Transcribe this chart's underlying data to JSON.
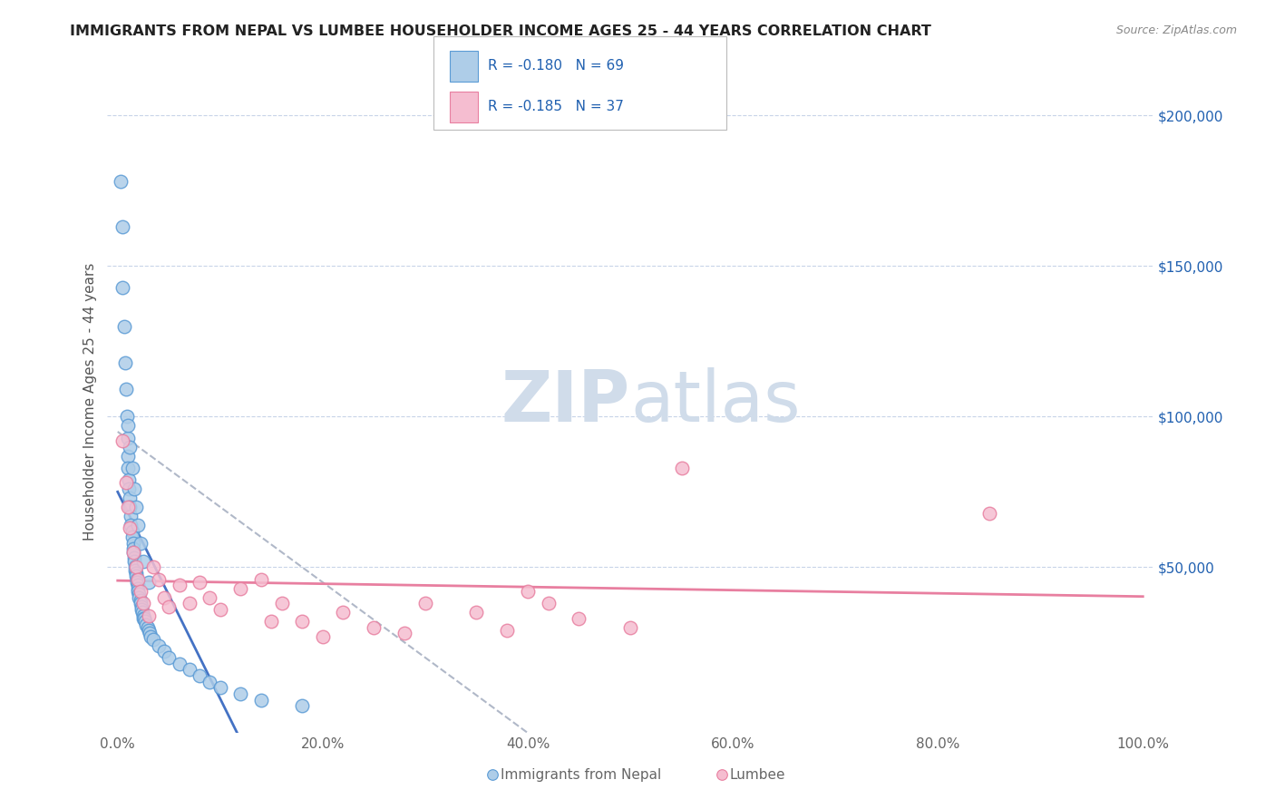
{
  "title": "IMMIGRANTS FROM NEPAL VS LUMBEE HOUSEHOLDER INCOME AGES 25 - 44 YEARS CORRELATION CHART",
  "source_text": "Source: ZipAtlas.com",
  "ylabel": "Householder Income Ages 25 - 44 years",
  "xlim": [
    -1.0,
    101.0
  ],
  "ylim": [
    -5000,
    215000
  ],
  "ytick_labels_right": [
    "$50,000",
    "$100,000",
    "$150,000",
    "$200,000"
  ],
  "ytick_vals_right": [
    50000,
    100000,
    150000,
    200000
  ],
  "xtick_vals": [
    0.0,
    20.0,
    40.0,
    60.0,
    80.0,
    100.0
  ],
  "xtick_labels": [
    "0.0%",
    "20.0%",
    "40.0%",
    "60.0%",
    "80.0%",
    "100.0%"
  ],
  "nepal_color": "#aecde8",
  "nepal_edge_color": "#5b9bd5",
  "lumbee_color": "#f5bdd0",
  "lumbee_edge_color": "#e87fa0",
  "nepal_line_color": "#4472c4",
  "lumbee_line_color": "#e87fa0",
  "gray_dash_color": "#b0b8c8",
  "background_color": "#ffffff",
  "grid_color": "#c8d4e8",
  "watermark_color": "#d0dcea",
  "title_color": "#222222",
  "axis_label_color": "#555555",
  "tick_label_color": "#666666",
  "right_tick_color": "#2060b0",
  "legend_R_color": "#2060b0",
  "nepal_scatter_x": [
    0.4,
    0.5,
    0.6,
    0.7,
    0.8,
    0.9,
    1.0,
    1.0,
    1.1,
    1.1,
    1.2,
    1.2,
    1.3,
    1.3,
    1.4,
    1.4,
    1.5,
    1.5,
    1.6,
    1.6,
    1.7,
    1.7,
    1.8,
    1.8,
    1.9,
    1.9,
    2.0,
    2.0,
    2.0,
    2.1,
    2.1,
    2.2,
    2.2,
    2.3,
    2.3,
    2.4,
    2.5,
    2.5,
    2.6,
    2.7,
    2.8,
    2.9,
    3.0,
    3.1,
    3.2,
    3.5,
    4.0,
    4.5,
    5.0,
    5.5,
    6.0,
    7.0,
    8.0,
    9.0,
    10.0,
    11.0,
    12.0,
    14.0,
    16.0,
    19.0,
    1.0,
    1.2,
    1.4,
    1.6,
    1.8,
    2.0,
    2.2,
    2.5,
    3.0
  ],
  "nepal_scatter_y": [
    180000,
    165000,
    155000,
    145000,
    135000,
    125000,
    115000,
    105000,
    98000,
    95000,
    91000,
    88000,
    85000,
    82000,
    80000,
    78000,
    76000,
    74000,
    72000,
    70000,
    68000,
    66000,
    65000,
    63000,
    62000,
    60000,
    58000,
    57000,
    56000,
    55000,
    54000,
    53000,
    52000,
    51000,
    50000,
    49000,
    48000,
    47000,
    46000,
    45000,
    44000,
    43000,
    42000,
    41000,
    40000,
    38000,
    36000,
    34000,
    32000,
    30000,
    28000,
    26000,
    24000,
    22000,
    20000,
    18000,
    16000,
    14000,
    12000,
    10000,
    100000,
    95000,
    88000,
    82000,
    76000,
    70000,
    64000,
    58000,
    50000
  ],
  "lumbee_scatter_x": [
    0.5,
    0.8,
    1.0,
    1.2,
    1.5,
    1.8,
    2.0,
    2.2,
    2.5,
    3.0,
    3.5,
    4.0,
    4.5,
    5.0,
    5.5,
    6.0,
    7.0,
    8.0,
    9.0,
    10.0,
    12.0,
    14.0,
    16.0,
    18.0,
    20.0,
    22.0,
    25.0,
    28.0,
    30.0,
    32.0,
    35.0,
    38.0,
    40.0,
    42.0,
    45.0,
    55.0,
    85.0
  ],
  "lumbee_scatter_y": [
    95000,
    80000,
    72000,
    65000,
    58000,
    52000,
    48000,
    44000,
    40000,
    36000,
    32000,
    30000,
    28000,
    26000,
    46000,
    42000,
    38000,
    34000,
    42000,
    38000,
    34000,
    44000,
    36000,
    32000,
    28000,
    34000,
    30000,
    28000,
    26000,
    38000,
    34000,
    30000,
    26000,
    38000,
    34000,
    82000,
    70000
  ]
}
